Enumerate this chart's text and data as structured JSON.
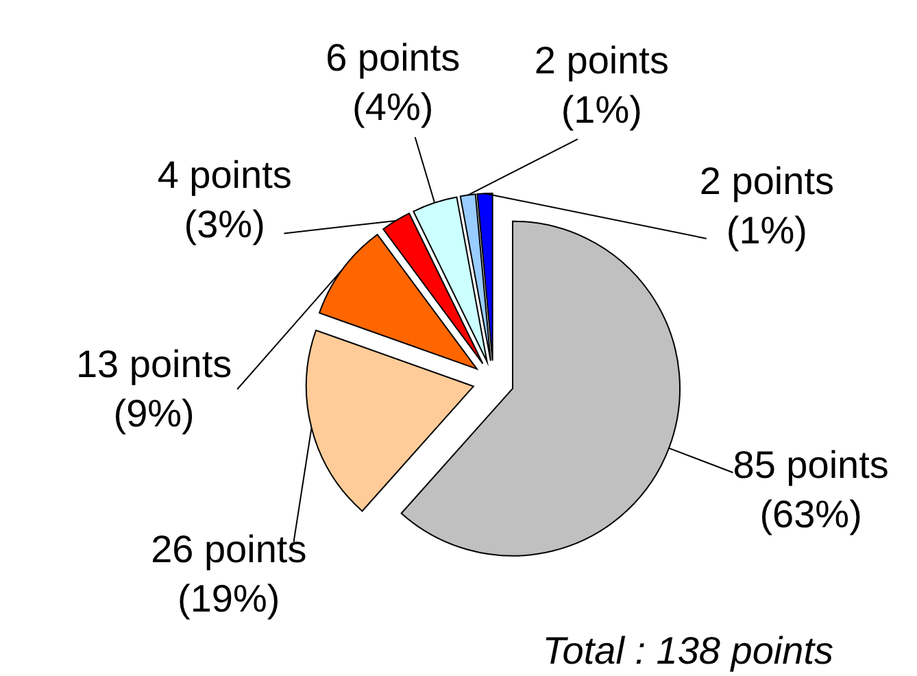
{
  "chart_data": {
    "type": "pie",
    "categories": [
      null,
      null,
      null,
      null,
      null,
      null,
      null
    ],
    "values": [
      85,
      26,
      13,
      4,
      6,
      2,
      2
    ],
    "colors": [
      "#c0c0c0",
      "#ffcc99",
      "#ff6600",
      "#ff0000",
      "#ccffff",
      "#99ccff",
      "#0000ff"
    ],
    "value_labels": [
      "85 points\n(63%)",
      "26 points\n(19%)",
      "13 points\n(9%)",
      "4 points\n(3%)",
      "6 points\n(4%)",
      "2 points\n(1%)",
      "2 points\n(1%)"
    ],
    "annotations": [
      "Total : 138 points"
    ]
  }
}
